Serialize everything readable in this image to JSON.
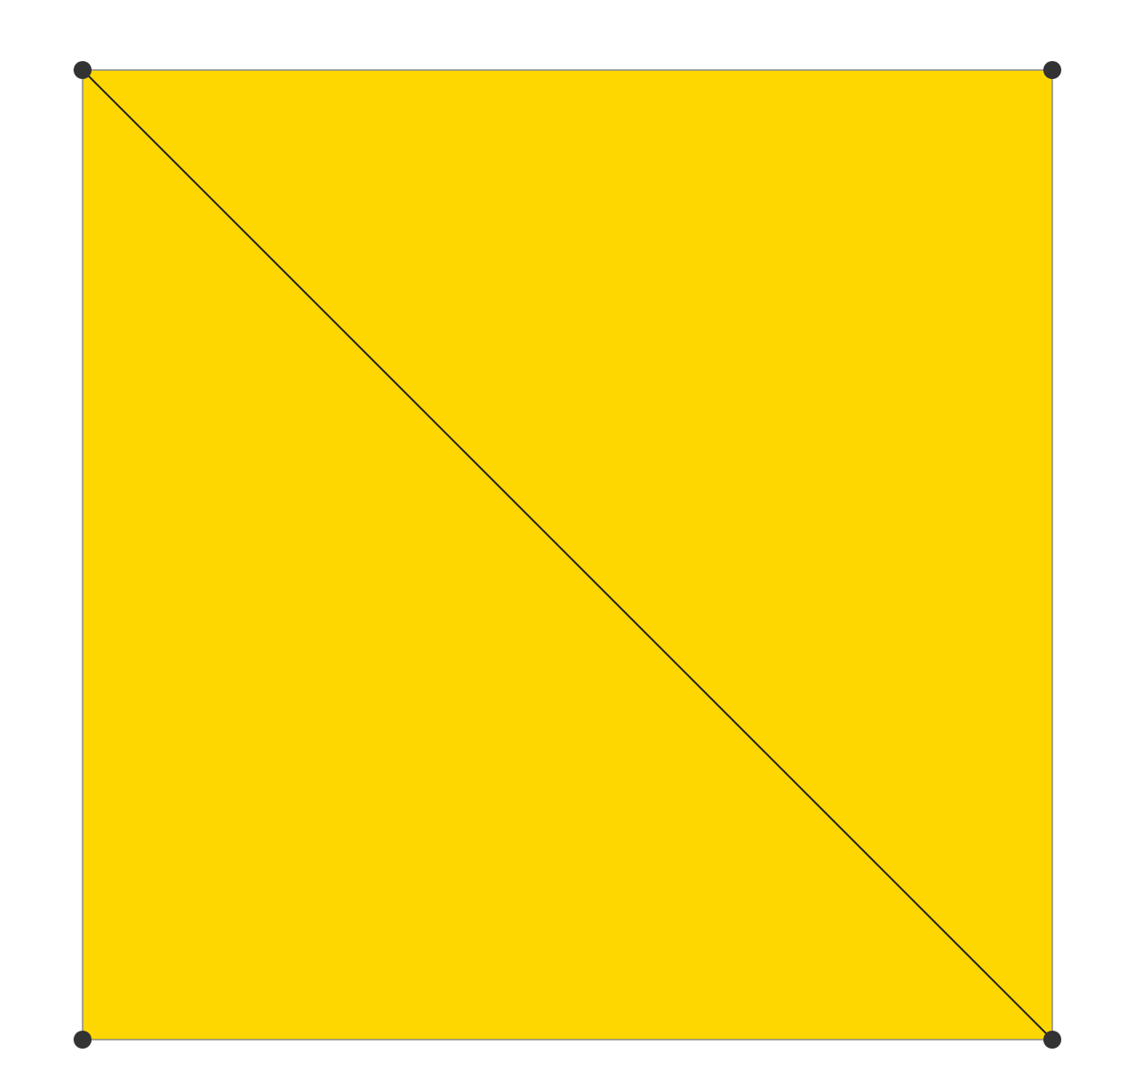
{
  "diagram": {
    "type": "square-with-diagonal",
    "vertices": [
      {
        "id": "top-left"
      },
      {
        "id": "top-right"
      },
      {
        "id": "bottom-right"
      },
      {
        "id": "bottom-left"
      }
    ],
    "diagonal": {
      "from": "top-left",
      "to": "bottom-right"
    },
    "colors": {
      "fill": "#FFD700",
      "edge": "#8a8a8a",
      "diagonal": "#1f1f1f",
      "vertex": "#333333",
      "background": "#ffffff"
    }
  }
}
